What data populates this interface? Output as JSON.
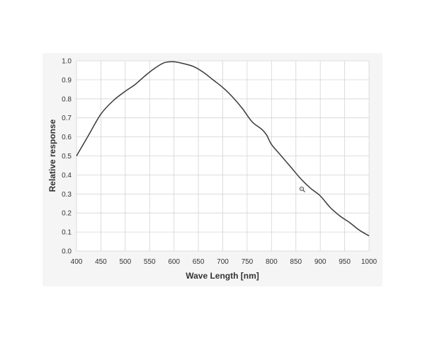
{
  "chart_data": {
    "type": "line",
    "title": "",
    "xlabel": "Wave Length [nm]",
    "ylabel": "Relative response",
    "xlim": [
      400,
      1000
    ],
    "ylim": [
      0,
      1.0
    ],
    "x_ticks": [
      400,
      450,
      500,
      550,
      600,
      650,
      700,
      750,
      800,
      850,
      900,
      950,
      1000
    ],
    "y_ticks": [
      "0.0",
      "0.1",
      "0.2",
      "0.3",
      "0.4",
      "0.5",
      "0.6",
      "0.7",
      "0.8",
      "0.9",
      "1.0"
    ],
    "grid": true,
    "series": [
      {
        "color": "#3a3a3a",
        "x": [
          400,
          425,
          450,
          475,
          500,
          520,
          540,
          560,
          580,
          600,
          620,
          640,
          660,
          680,
          700,
          720,
          740,
          760,
          780,
          790,
          800,
          820,
          840,
          860,
          880,
          900,
          920,
          940,
          960,
          980,
          1000
        ],
        "y": [
          0.5,
          0.61,
          0.72,
          0.79,
          0.84,
          0.875,
          0.92,
          0.96,
          0.99,
          0.995,
          0.985,
          0.97,
          0.94,
          0.9,
          0.86,
          0.81,
          0.75,
          0.68,
          0.64,
          0.61,
          0.56,
          0.5,
          0.44,
          0.38,
          0.33,
          0.29,
          0.23,
          0.185,
          0.15,
          0.11,
          0.08
        ]
      }
    ]
  },
  "colors": {
    "panel_background": "#f5f5f5",
    "plot_background": "#ffffff",
    "grid": "#d4d4d4",
    "axis_text": "#333333"
  },
  "icons": {
    "cursor": "zoom-cursor-icon"
  }
}
